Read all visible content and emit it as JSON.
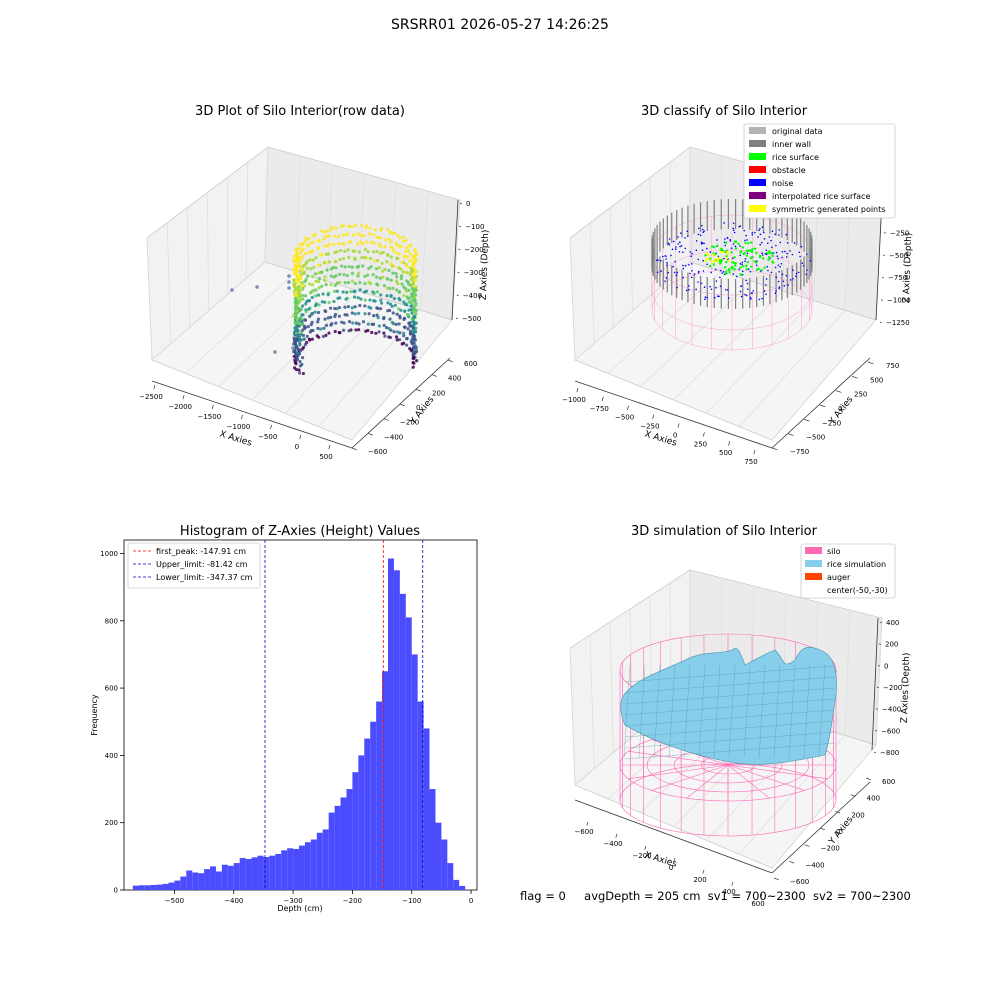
{
  "suptitle": "SRSRR01 2026-05-27 14:26:25",
  "status": {
    "flag": "flag = 0",
    "avg": "avgDepth = 205 cm",
    "sv1": "sv1 = 700~2300",
    "sv2": "sv2 = 700~2300"
  },
  "chart_data": [
    {
      "type": "scatter",
      "title": "3D Plot of Silo Interior(row data)",
      "xlabel": "X Axies",
      "ylabel": "Y Axies",
      "zlabel": "Z Axies (Depth)",
      "xticks": [
        "−2500",
        "−2000",
        "−1500",
        "−1000",
        "−500",
        "0",
        "500"
      ],
      "yticks": [
        "−600",
        "−400",
        "−200",
        "0",
        "200",
        "400",
        "600"
      ],
      "zticks": [
        "0",
        "−100",
        "−200",
        "−300",
        "−400",
        "−500"
      ],
      "colormap": "viridis"
    },
    {
      "type": "scatter",
      "title": "3D classify of Silo Interior",
      "xlabel": "X Axies",
      "ylabel": "Y Axies",
      "zlabel": "Z Axies (Depth)",
      "xticks": [
        "−1000",
        "−750",
        "−500",
        "−250",
        "0",
        "250",
        "500",
        "750"
      ],
      "yticks": [
        "−750",
        "−500",
        "−250",
        "0",
        "250",
        "500",
        "750"
      ],
      "zticks": [
        "0",
        "−250",
        "−500",
        "−750",
        "−1000",
        "−1250"
      ],
      "legend_position": "top-right",
      "legend": [
        {
          "label": "original data",
          "color": "#b3b3b3"
        },
        {
          "label": "inner wall",
          "color": "#808080"
        },
        {
          "label": "rice surface",
          "color": "#00ff00"
        },
        {
          "label": "obstacle",
          "color": "#ff0000"
        },
        {
          "label": "noise",
          "color": "#0000ff"
        },
        {
          "label": "interpolated rice surface",
          "color": "#800080"
        },
        {
          "label": "symmetric generated points",
          "color": "#ffff00"
        }
      ]
    },
    {
      "type": "bar",
      "title": "Histogram of Z-Axies (Height) Values",
      "xlabel": "Depth (cm)",
      "ylabel": "Frequency",
      "xlim": [
        -585,
        10
      ],
      "ylim": [
        0,
        1040
      ],
      "xticks": [
        {
          "v": -500,
          "label": "−500"
        },
        {
          "v": -400,
          "label": "−400"
        },
        {
          "v": -300,
          "label": "−300"
        },
        {
          "v": -200,
          "label": "−200"
        },
        {
          "v": -100,
          "label": "−100"
        },
        {
          "v": 0,
          "label": "0"
        }
      ],
      "yticks": [
        0,
        200,
        400,
        600,
        800,
        1000
      ],
      "bar_color": "#4c4cff",
      "bin_width": 10,
      "bin_starts": [
        -570,
        -560,
        -550,
        -540,
        -530,
        -520,
        -510,
        -500,
        -490,
        -480,
        -470,
        -460,
        -450,
        -440,
        -430,
        -420,
        -410,
        -400,
        -390,
        -380,
        -370,
        -360,
        -350,
        -340,
        -330,
        -320,
        -310,
        -300,
        -290,
        -280,
        -270,
        -260,
        -250,
        -240,
        -230,
        -220,
        -210,
        -200,
        -190,
        -180,
        -170,
        -160,
        -150,
        -140,
        -130,
        -120,
        -110,
        -100,
        -90,
        -80,
        -70,
        -60,
        -50,
        -40,
        -30,
        -20
      ],
      "counts": [
        13,
        14,
        14,
        15,
        16,
        18,
        22,
        28,
        40,
        58,
        52,
        50,
        62,
        70,
        55,
        75,
        72,
        80,
        95,
        92,
        97,
        102,
        98,
        102,
        107,
        118,
        124,
        122,
        132,
        142,
        150,
        170,
        180,
        230,
        250,
        275,
        300,
        350,
        400,
        450,
        500,
        560,
        650,
        985,
        950,
        880,
        810,
        700,
        560,
        480,
        300,
        200,
        150,
        80,
        30,
        12
      ],
      "vlines": [
        {
          "label": "first_peak: -147.91 cm",
          "x": -147.91,
          "color": "#ff0000"
        },
        {
          "label": "Upper_limit: -81.42 cm",
          "x": -81.42,
          "color": "#0000cc"
        },
        {
          "label": "Lower_limit: -347.37 cm",
          "x": -347.37,
          "color": "#0000cc"
        }
      ]
    },
    {
      "type": "surface",
      "title": "3D simulation of Silo Interior",
      "xlabel": "X Axies",
      "ylabel": "Y Axies",
      "zlabel": "Z Axies (Depth)",
      "xticks": [
        "−600",
        "−400",
        "−200",
        "0",
        "200",
        "400",
        "600"
      ],
      "yticks": [
        "−600",
        "−400",
        "−200",
        "0",
        "200",
        "400",
        "600"
      ],
      "zticks": [
        "400",
        "200",
        "0",
        "−200",
        "−400",
        "−600",
        "−800"
      ],
      "legend_position": "top-right",
      "legend": [
        {
          "label": "silo",
          "color": "#ff69b4"
        },
        {
          "label": "rice simulation",
          "color": "#87ceeb"
        },
        {
          "label": "auger",
          "color": "#ff4500"
        },
        {
          "label": "center(-50,-30)",
          "color": ""
        }
      ]
    }
  ]
}
